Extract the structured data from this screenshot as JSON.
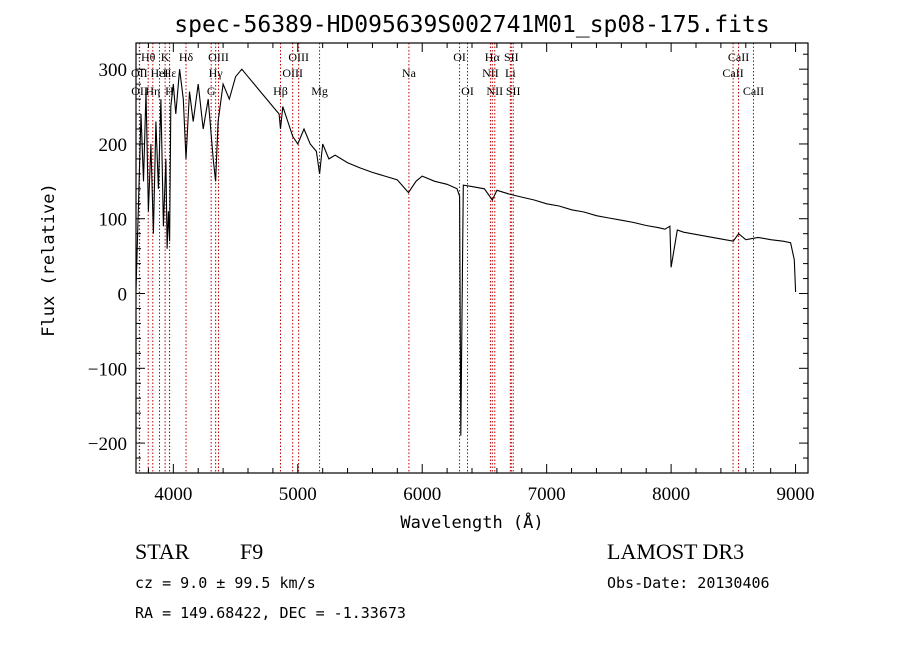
{
  "chart_data": {
    "type": "line",
    "title": "spec-56389-HD095639S002741M01_sp08-175.fits",
    "xlabel": "Wavelength (Å)",
    "ylabel": "Flux (relative)",
    "xlim": [
      3700,
      9100
    ],
    "ylim": [
      -240,
      335
    ],
    "xticks": [
      4000,
      5000,
      6000,
      7000,
      8000,
      9000
    ],
    "yticks": [
      -200,
      -100,
      0,
      100,
      200,
      300
    ],
    "series": [
      {
        "name": "flux",
        "x": [
          3700,
          3720,
          3740,
          3760,
          3780,
          3800,
          3820,
          3840,
          3860,
          3880,
          3900,
          3920,
          3940,
          3950,
          3960,
          3970,
          3980,
          4000,
          4020,
          4050,
          4080,
          4102,
          4130,
          4160,
          4200,
          4240,
          4280,
          4320,
          4340,
          4360,
          4400,
          4450,
          4500,
          4550,
          4600,
          4650,
          4700,
          4750,
          4800,
          4850,
          4861,
          4880,
          4920,
          4960,
          5000,
          5050,
          5100,
          5150,
          5175,
          5200,
          5250,
          5300,
          5400,
          5500,
          5600,
          5700,
          5800,
          5890,
          5950,
          6000,
          6100,
          6200,
          6280,
          6300,
          6310,
          6330,
          6400,
          6500,
          6563,
          6600,
          6700,
          6800,
          6900,
          7000,
          7100,
          7200,
          7300,
          7400,
          7500,
          7600,
          7700,
          7800,
          7900,
          7950,
          7990,
          8000,
          8050,
          8100,
          8200,
          8300,
          8400,
          8500,
          8542,
          8600,
          8700,
          8800,
          8900,
          8960,
          8990,
          9000
        ],
        "y": [
          5,
          120,
          240,
          150,
          270,
          110,
          200,
          80,
          230,
          140,
          260,
          90,
          180,
          60,
          110,
          70,
          250,
          280,
          240,
          300,
          260,
          180,
          270,
          230,
          280,
          220,
          260,
          180,
          150,
          230,
          280,
          260,
          290,
          300,
          290,
          280,
          270,
          260,
          250,
          240,
          220,
          250,
          230,
          210,
          200,
          220,
          200,
          190,
          160,
          200,
          180,
          185,
          175,
          168,
          162,
          157,
          152,
          135,
          150,
          157,
          150,
          146,
          140,
          130,
          -190,
          145,
          143,
          140,
          125,
          138,
          133,
          129,
          125,
          120,
          117,
          112,
          109,
          104,
          101,
          98,
          95,
          91,
          88,
          86,
          90,
          35,
          85,
          82,
          79,
          76,
          73,
          70,
          80,
          72,
          75,
          72,
          70,
          68,
          45,
          2
        ]
      }
    ],
    "lines": [
      {
        "label": "Hθ",
        "x": 3798,
        "row": 0
      },
      {
        "label": "OII",
        "x": 3727,
        "row": 1
      },
      {
        "label": "OII",
        "x": 3729,
        "row": 2
      },
      {
        "label": "Hη",
        "x": 3835,
        "row": 2
      },
      {
        "label": "HeI",
        "x": 3889,
        "row": 1
      },
      {
        "label": "K",
        "x": 3934,
        "row": 0
      },
      {
        "label": "H",
        "x": 3969,
        "row": 2
      },
      {
        "label": "Hε",
        "x": 3970,
        "row": 1
      },
      {
        "label": "Hδ",
        "x": 4102,
        "row": 0
      },
      {
        "label": "OIII",
        "x": 4363,
        "row": 0
      },
      {
        "label": "Hγ",
        "x": 4340,
        "row": 1
      },
      {
        "label": "G",
        "x": 4304,
        "row": 2
      },
      {
        "label": "Hβ",
        "x": 4861,
        "row": 2
      },
      {
        "label": "OIII",
        "x": 4959,
        "row": 1
      },
      {
        "label": "OIII",
        "x": 5007,
        "row": 0
      },
      {
        "label": "Mg",
        "x": 5175,
        "row": 2
      },
      {
        "label": "Na",
        "x": 5893,
        "row": 1
      },
      {
        "label": "OI",
        "x": 6300,
        "row": 0
      },
      {
        "label": "OI",
        "x": 6364,
        "row": 2
      },
      {
        "label": "NII",
        "x": 6548,
        "row": 1
      },
      {
        "label": "Hα",
        "x": 6563,
        "row": 0
      },
      {
        "label": "NII",
        "x": 6583,
        "row": 2
      },
      {
        "label": "SII",
        "x": 6716,
        "row": 0
      },
      {
        "label": "Li",
        "x": 6708,
        "row": 1
      },
      {
        "label": "SII",
        "x": 6731,
        "row": 2
      },
      {
        "label": "CaII",
        "x": 8498,
        "row": 1
      },
      {
        "label": "CaII",
        "x": 8542,
        "row": 0
      },
      {
        "label": "CaII",
        "x": 8662,
        "row": 2
      }
    ],
    "grid": false,
    "legend": "none"
  },
  "info": {
    "object_class": "STAR",
    "subclass": "F9",
    "survey": "LAMOST DR3",
    "cz": "cz = 9.0 ± 99.5 km/s",
    "obs_date": "Obs-Date: 20130406",
    "coords": "RA = 149.68422, DEC =  -1.33673"
  }
}
